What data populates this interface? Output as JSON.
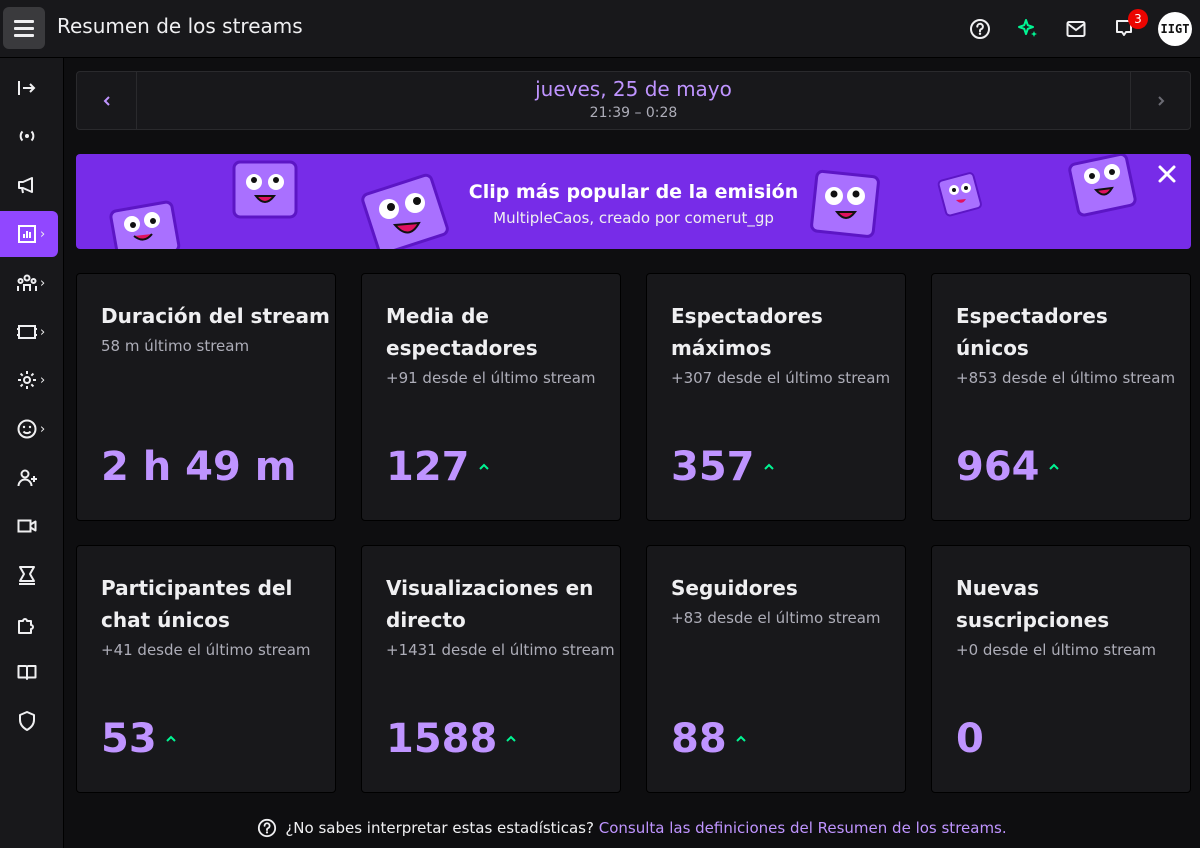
{
  "header": {
    "title": "Resumen de los streams",
    "notifications_count": "3",
    "avatar_text": "IIGT"
  },
  "date_nav": {
    "date": "jueves, 25 de mayo",
    "time_range": "21:39 – 0:28"
  },
  "banner": {
    "title": "Clip más popular de la emisión",
    "subtitle": "MultipleCaos, creado por comerut_gp"
  },
  "cards": [
    {
      "title": "Duración del stream",
      "sub": "58 m último stream",
      "value": "2 h 49 m",
      "trend_up": false
    },
    {
      "title": "Media de espectadores",
      "sub": "+91 desde el último stream",
      "value": "127",
      "trend_up": true
    },
    {
      "title": "Espectadores máximos",
      "sub": "+307 desde el último stream",
      "value": "357",
      "trend_up": true
    },
    {
      "title": "Espectadores únicos",
      "sub": "+853 desde el último stream",
      "value": "964",
      "trend_up": true
    },
    {
      "title": "Participantes del chat únicos",
      "sub": "+41 desde el último stream",
      "value": "53",
      "trend_up": true
    },
    {
      "title": "Visualizaciones en directo",
      "sub": "+1431 desde el último stream",
      "value": "1588",
      "trend_up": true
    },
    {
      "title": "Seguidores",
      "sub": "+83 desde el último stream",
      "value": "88",
      "trend_up": true
    },
    {
      "title": "Nuevas suscripciones",
      "sub": "+0 desde el último stream",
      "value": "0",
      "trend_up": false
    }
  ],
  "footer": {
    "question": "¿No sabes interpretar estas estadísticas?",
    "link": "Consulta las definiciones del Resumen de los streams."
  },
  "colors": {
    "accent": "#bf94ff",
    "primary": "#9147ff",
    "banner": "#772ce8",
    "trend_up": "#00f593"
  }
}
